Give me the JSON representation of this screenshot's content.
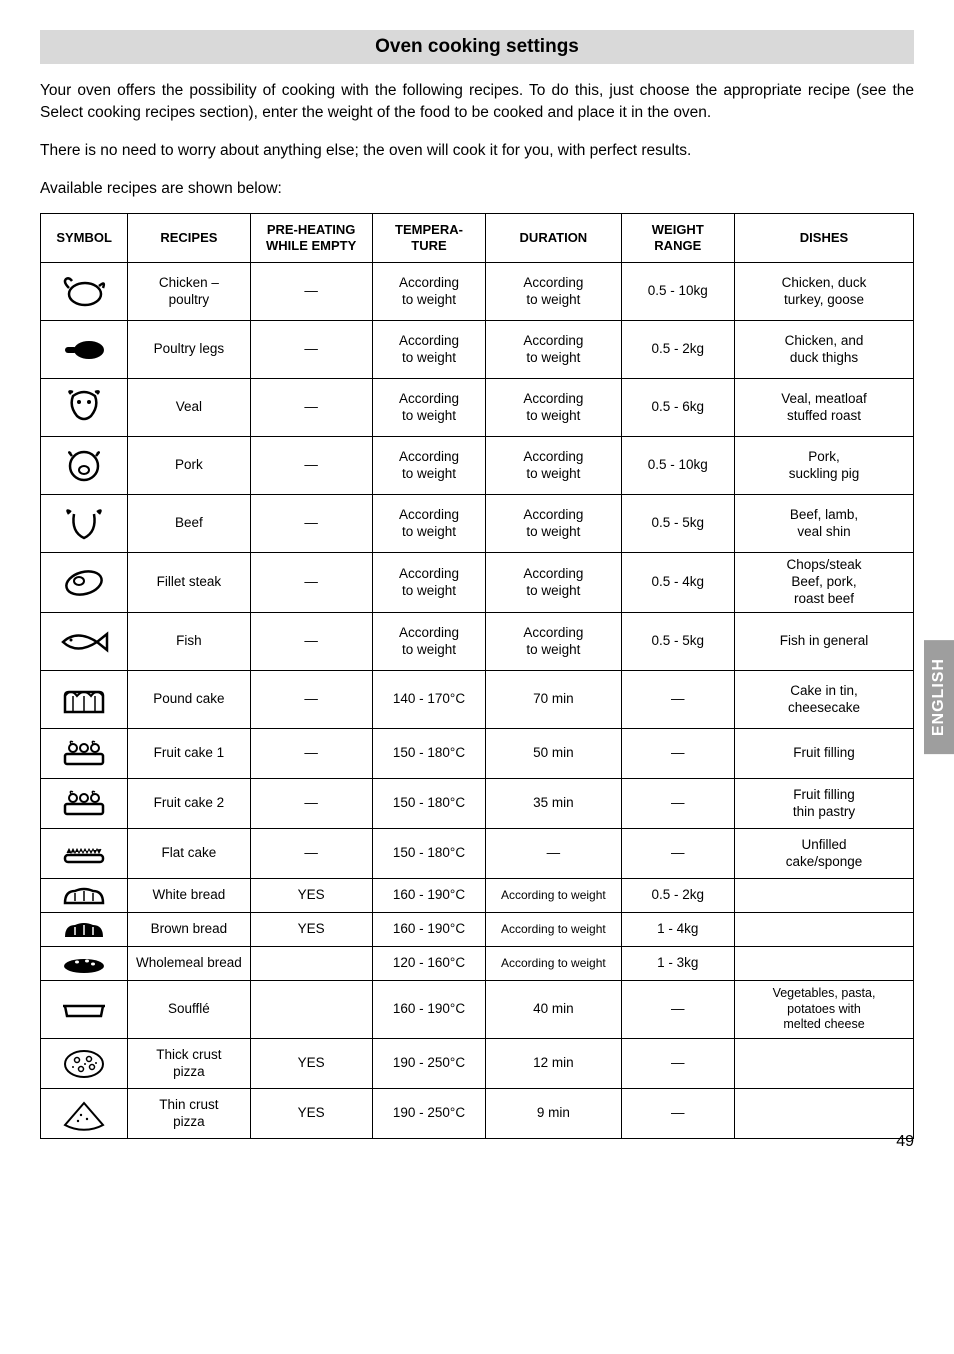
{
  "title": "Oven cooking settings",
  "intro1": "Your oven offers the possibility of cooking with the following recipes. To do this, just choose the appropriate recipe (see the Select cooking recipes section), enter the weight of the food to be cooked and place it in the oven.",
  "intro2": "There is no need to worry about anything else; the oven will cook it for you, with perfect results.",
  "intro3": "Available recipes are shown below:",
  "side_tab": "ENGLISH",
  "page_number": "49",
  "headers": {
    "symbol": "SYMBOL",
    "recipes": "RECIPES",
    "preheating1": "PRE-HEATING",
    "preheating2": "WHILE EMPTY",
    "temperature1": "TEMPERA-",
    "temperature2": "TURE",
    "duration": "DURATION",
    "weight1": "WEIGHT",
    "weight2": "RANGE",
    "dishes": "DISHES"
  },
  "rows": [
    {
      "icon": "chicken",
      "recipe": "Chicken –\npoultry",
      "pre": "—",
      "temp": "According\nto weight",
      "dur": "According\nto weight",
      "wt": "0.5 - 10kg",
      "dish": "Chicken, duck\nturkey, goose"
    },
    {
      "icon": "leg",
      "recipe": "Poultry legs",
      "pre": "—",
      "temp": "According\nto weight",
      "dur": "According\nto weight",
      "wt": "0.5 - 2kg",
      "dish": "Chicken, and\nduck thighs"
    },
    {
      "icon": "veal",
      "recipe": "Veal",
      "pre": "—",
      "temp": "According\nto weight",
      "dur": "According\nto weight",
      "wt": "0.5 - 6kg",
      "dish": "Veal, meatloaf\nstuffed roast"
    },
    {
      "icon": "pork",
      "recipe": "Pork",
      "pre": "—",
      "temp": "According\nto weight",
      "dur": "According\nto weight",
      "wt": "0.5 - 10kg",
      "dish": "Pork,\nsuckling pig"
    },
    {
      "icon": "beef",
      "recipe": "Beef",
      "pre": "—",
      "temp": "According\nto weight",
      "dur": "According\nto weight",
      "wt": "0.5 - 5kg",
      "dish": "Beef, lamb,\nveal shin"
    },
    {
      "icon": "steak",
      "recipe": "Fillet steak",
      "pre": "—",
      "temp": "According\nto weight",
      "dur": "According\nto weight",
      "wt": "0.5 - 4kg",
      "dish": "Chops/steak\nBeef, pork,\nroast beef"
    },
    {
      "icon": "fish",
      "recipe": "Fish",
      "pre": "—",
      "temp": "According\nto weight",
      "dur": "According\nto weight",
      "wt": "0.5 - 5kg",
      "dish": "Fish in general"
    },
    {
      "icon": "pound",
      "recipe": "Pound cake",
      "pre": "—",
      "temp": "140 - 170°C",
      "dur": "70 min",
      "wt": "—",
      "dish": "Cake in tin,\ncheesecake"
    },
    {
      "icon": "fruitcake",
      "recipe": "Fruit cake 1",
      "pre": "—",
      "temp": "150 - 180°C",
      "dur": "50 min",
      "wt": "—",
      "dish": "Fruit filling"
    },
    {
      "icon": "fruitcake",
      "recipe": "Fruit cake 2",
      "pre": "—",
      "temp": "150 - 180°C",
      "dur": "35 min",
      "wt": "—",
      "dish": "Fruit filling\nthin pastry"
    },
    {
      "icon": "flat",
      "recipe": "Flat cake",
      "pre": "—",
      "temp": "150 - 180°C",
      "dur": "—",
      "wt": "—",
      "dish": "Unfilled\ncake/sponge"
    },
    {
      "icon": "white",
      "recipe": "White bread",
      "pre": "YES",
      "temp": "160 - 190°C",
      "dur": "According to weight",
      "wt": "0.5 - 2kg",
      "dish": ""
    },
    {
      "icon": "brown",
      "recipe": "Brown bread",
      "pre": "YES",
      "temp": "160 - 190°C",
      "dur": "According to weight",
      "wt": "1 - 4kg",
      "dish": ""
    },
    {
      "icon": "whole",
      "recipe": "Wholemeal bread",
      "pre": "",
      "temp": "120 - 160°C",
      "dur": "According to weight",
      "wt": "1 - 3kg",
      "dish": ""
    },
    {
      "icon": "souffle",
      "recipe": "Soufflé",
      "pre": "",
      "temp": "160 - 190°C",
      "dur": "40 min",
      "wt": "—",
      "dish": "Vegetables, pasta,\npotatoes with\nmelted cheese"
    },
    {
      "icon": "thick",
      "recipe": "Thick crust\npizza",
      "pre": "YES",
      "temp": "190 - 250°C",
      "dur": "12 min",
      "wt": "—",
      "dish": ""
    },
    {
      "icon": "thin",
      "recipe": "Thin crust\npizza",
      "pre": "YES",
      "temp": "190 - 250°C",
      "dur": "9 min",
      "wt": "—",
      "dish": ""
    }
  ],
  "row_heights": [
    "tall",
    "tall",
    "tall",
    "tall",
    "tall",
    "tall",
    "tall",
    "tall",
    "med",
    "med",
    "med",
    "short",
    "short",
    "short",
    "tall",
    "med",
    "med"
  ]
}
